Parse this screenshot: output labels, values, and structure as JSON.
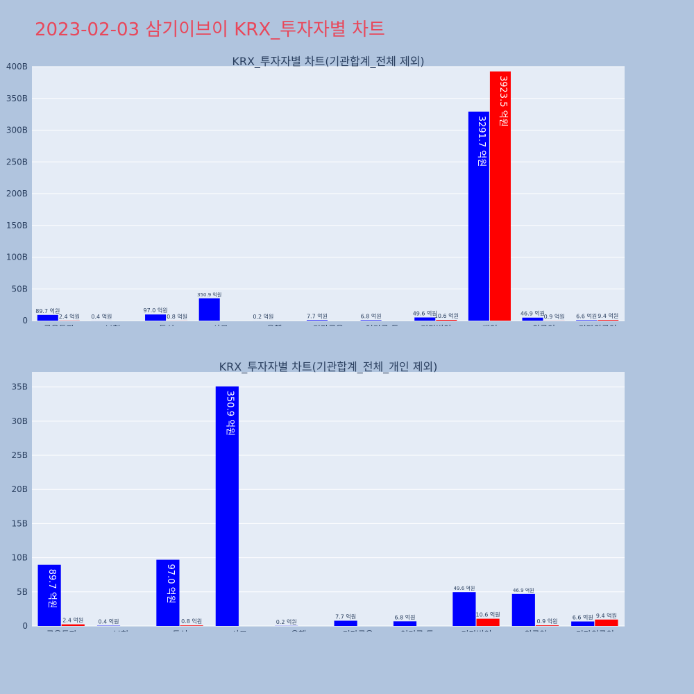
{
  "page": {
    "title": "2023-02-03 삼기이브이 KRX_투자자별 차트"
  },
  "chart_data": [
    {
      "type": "bar",
      "title": "KRX_투자자별 차트(기관합계_전체 제외)",
      "categories": [
        "금융투자",
        "보험",
        "투신",
        "사모",
        "은행",
        "기타금융",
        "연기금 등",
        "기타법인",
        "개인",
        "외국인",
        "기타외국인"
      ],
      "series": [
        {
          "color": "#0000ff",
          "values": [
            8970000000,
            40000000,
            9700000000,
            35090000000,
            20000000,
            770000000,
            680000000,
            4960000000,
            329170000000,
            4690000000,
            660000000
          ],
          "labels": [
            "89.7 억원",
            "0.4 억원",
            "97.0 억원",
            "350.9 억원",
            "0.2 억원",
            "7.7 억원",
            "6.8 억원",
            "49.6 억원",
            "3291.7 억원",
            "46.9 억원",
            "6.6 억원"
          ]
        },
        {
          "color": "#ff0000",
          "values": [
            240000000,
            0,
            80000000,
            0,
            0,
            0,
            0,
            1060000000,
            392350000000,
            90000000,
            940000000
          ],
          "labels": [
            "2.4 억원",
            "",
            "0.8 억원",
            "",
            "",
            "",
            "",
            "10.6 억원",
            "3923.5 억원",
            "0.9 억원",
            "9.4 억원"
          ]
        }
      ],
      "ylim": [
        0,
        400000000000
      ],
      "yticks": [
        0,
        50000000000,
        100000000000,
        150000000000,
        200000000000,
        250000000000,
        300000000000,
        350000000000,
        400000000000
      ],
      "ytick_labels": [
        "0",
        "50B",
        "100B",
        "150B",
        "200B",
        "250B",
        "300B",
        "350B",
        "400B"
      ]
    },
    {
      "type": "bar",
      "title": "KRX_투자자별 차트(기관합계_전체_개인 제외)",
      "categories": [
        "금융투자",
        "보험",
        "투신",
        "사모",
        "은행",
        "기타금융",
        "연기금 등",
        "기타법인",
        "외국인",
        "기타외국인"
      ],
      "series": [
        {
          "color": "#0000ff",
          "values": [
            8970000000,
            40000000,
            9700000000,
            35090000000,
            20000000,
            770000000,
            680000000,
            4960000000,
            4690000000,
            660000000
          ],
          "labels": [
            "89.7 억원",
            "0.4 억원",
            "97.0 억원",
            "350.9 억원",
            "0.2 억원",
            "7.7 억원",
            "6.8 억원",
            "49.6 억원",
            "46.9 억원",
            "6.6 억원"
          ]
        },
        {
          "color": "#ff0000",
          "values": [
            240000000,
            0,
            80000000,
            0,
            0,
            0,
            0,
            1060000000,
            90000000,
            940000000
          ],
          "labels": [
            "2.4 억원",
            "",
            "0.8 억원",
            "",
            "",
            "",
            "",
            "10.6 억원",
            "0.9 억원",
            "9.4 억원"
          ]
        }
      ],
      "ylim": [
        0,
        37200000000
      ],
      "yticks": [
        0,
        5000000000,
        10000000000,
        15000000000,
        20000000000,
        25000000000,
        30000000000,
        35000000000
      ],
      "ytick_labels": [
        "0",
        "5B",
        "10B",
        "15B",
        "20B",
        "25B",
        "30B",
        "35B"
      ]
    }
  ]
}
